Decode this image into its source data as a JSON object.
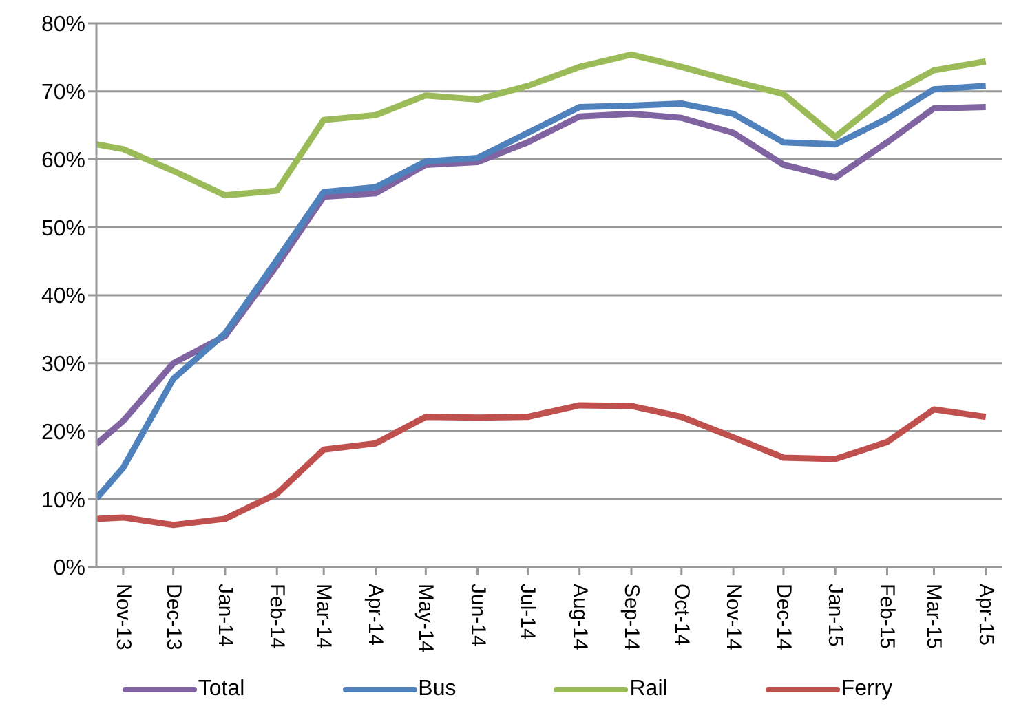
{
  "chart_data": {
    "type": "line",
    "x": [
      "2013-10-16",
      "2013-11-01",
      "2013-12-01",
      "2014-01-01",
      "2014-02-01",
      "2014-03-01",
      "2014-04-01",
      "2014-05-01",
      "2014-06-01",
      "2014-07-01",
      "2014-08-01",
      "2014-09-01",
      "2014-10-01",
      "2014-11-01",
      "2014-12-01",
      "2015-01-01",
      "2015-02-01",
      "2015-03-01",
      "2015-04-01"
    ],
    "series": [
      {
        "name": "Total",
        "color": "#8064a2",
        "values": [
          18.1,
          21.5,
          30,
          34,
          44.4,
          54.5,
          55,
          59.2,
          59.6,
          62.5,
          66.3,
          66.7,
          66.1,
          63.9,
          59.2,
          57.3,
          62.5,
          67.5,
          67.7
        ]
      },
      {
        "name": "Bus",
        "color": "#4f81bd",
        "values": [
          10.1,
          14.6,
          27.7,
          34.4,
          45.2,
          55.2,
          55.9,
          59.7,
          60.2,
          63.9,
          67.7,
          67.9,
          68.2,
          66.7,
          62.5,
          62.2,
          66,
          70.3,
          70.8
        ]
      },
      {
        "name": "Rail",
        "color": "#9bbb59",
        "values": [
          62.2,
          61.5,
          58.3,
          54.7,
          55.4,
          65.8,
          66.5,
          69.4,
          68.8,
          70.8,
          73.6,
          75.4,
          73.6,
          71.5,
          69.6,
          63.3,
          69.4,
          73.1,
          74.4
        ]
      },
      {
        "name": "Ferry",
        "color": "#c0504d",
        "values": [
          7.1,
          7.3,
          6.2,
          7.1,
          10.8,
          17.3,
          18.2,
          22.1,
          22,
          22.1,
          23.8,
          23.7,
          22.1,
          19.1,
          16.1,
          15.9,
          18.4,
          23.2,
          22.1
        ]
      }
    ],
    "xlim": [
      "2013-10-16",
      "2015-04-11"
    ],
    "xticks": [
      {
        "value": "2013-11-01",
        "label": "Nov-13"
      },
      {
        "value": "2013-12-01",
        "label": "Dec-13"
      },
      {
        "value": "2014-01-01",
        "label": "Jan-14"
      },
      {
        "value": "2014-02-01",
        "label": "Feb-14"
      },
      {
        "value": "2014-03-01",
        "label": "Mar-14"
      },
      {
        "value": "2014-04-01",
        "label": "Apr-14"
      },
      {
        "value": "2014-05-01",
        "label": "May-14"
      },
      {
        "value": "2014-06-01",
        "label": "Jun-14"
      },
      {
        "value": "2014-07-01",
        "label": "Jul-14"
      },
      {
        "value": "2014-08-01",
        "label": "Aug-14"
      },
      {
        "value": "2014-09-01",
        "label": "Sep-14"
      },
      {
        "value": "2014-10-01",
        "label": "Oct-14"
      },
      {
        "value": "2014-11-01",
        "label": "Nov-14"
      },
      {
        "value": "2014-12-01",
        "label": "Dec-14"
      },
      {
        "value": "2015-01-01",
        "label": "Jan-15"
      },
      {
        "value": "2015-02-01",
        "label": "Feb-15"
      },
      {
        "value": "2015-03-01",
        "label": "Mar-15"
      },
      {
        "value": "2015-04-01",
        "label": "Apr-15"
      }
    ],
    "ylim": [
      0,
      80
    ],
    "yticks": [
      {
        "value": 0,
        "label": "0%"
      },
      {
        "value": 10,
        "label": "10%"
      },
      {
        "value": 20,
        "label": "20%"
      },
      {
        "value": 30,
        "label": "30%"
      },
      {
        "value": 40,
        "label": "40%"
      },
      {
        "value": 50,
        "label": "50%"
      },
      {
        "value": 60,
        "label": "60%"
      },
      {
        "value": 70,
        "label": "70%"
      },
      {
        "value": 80,
        "label": "80%"
      }
    ],
    "grid": "y",
    "legend": "bottom",
    "marker": "none",
    "line_style": "solid"
  }
}
